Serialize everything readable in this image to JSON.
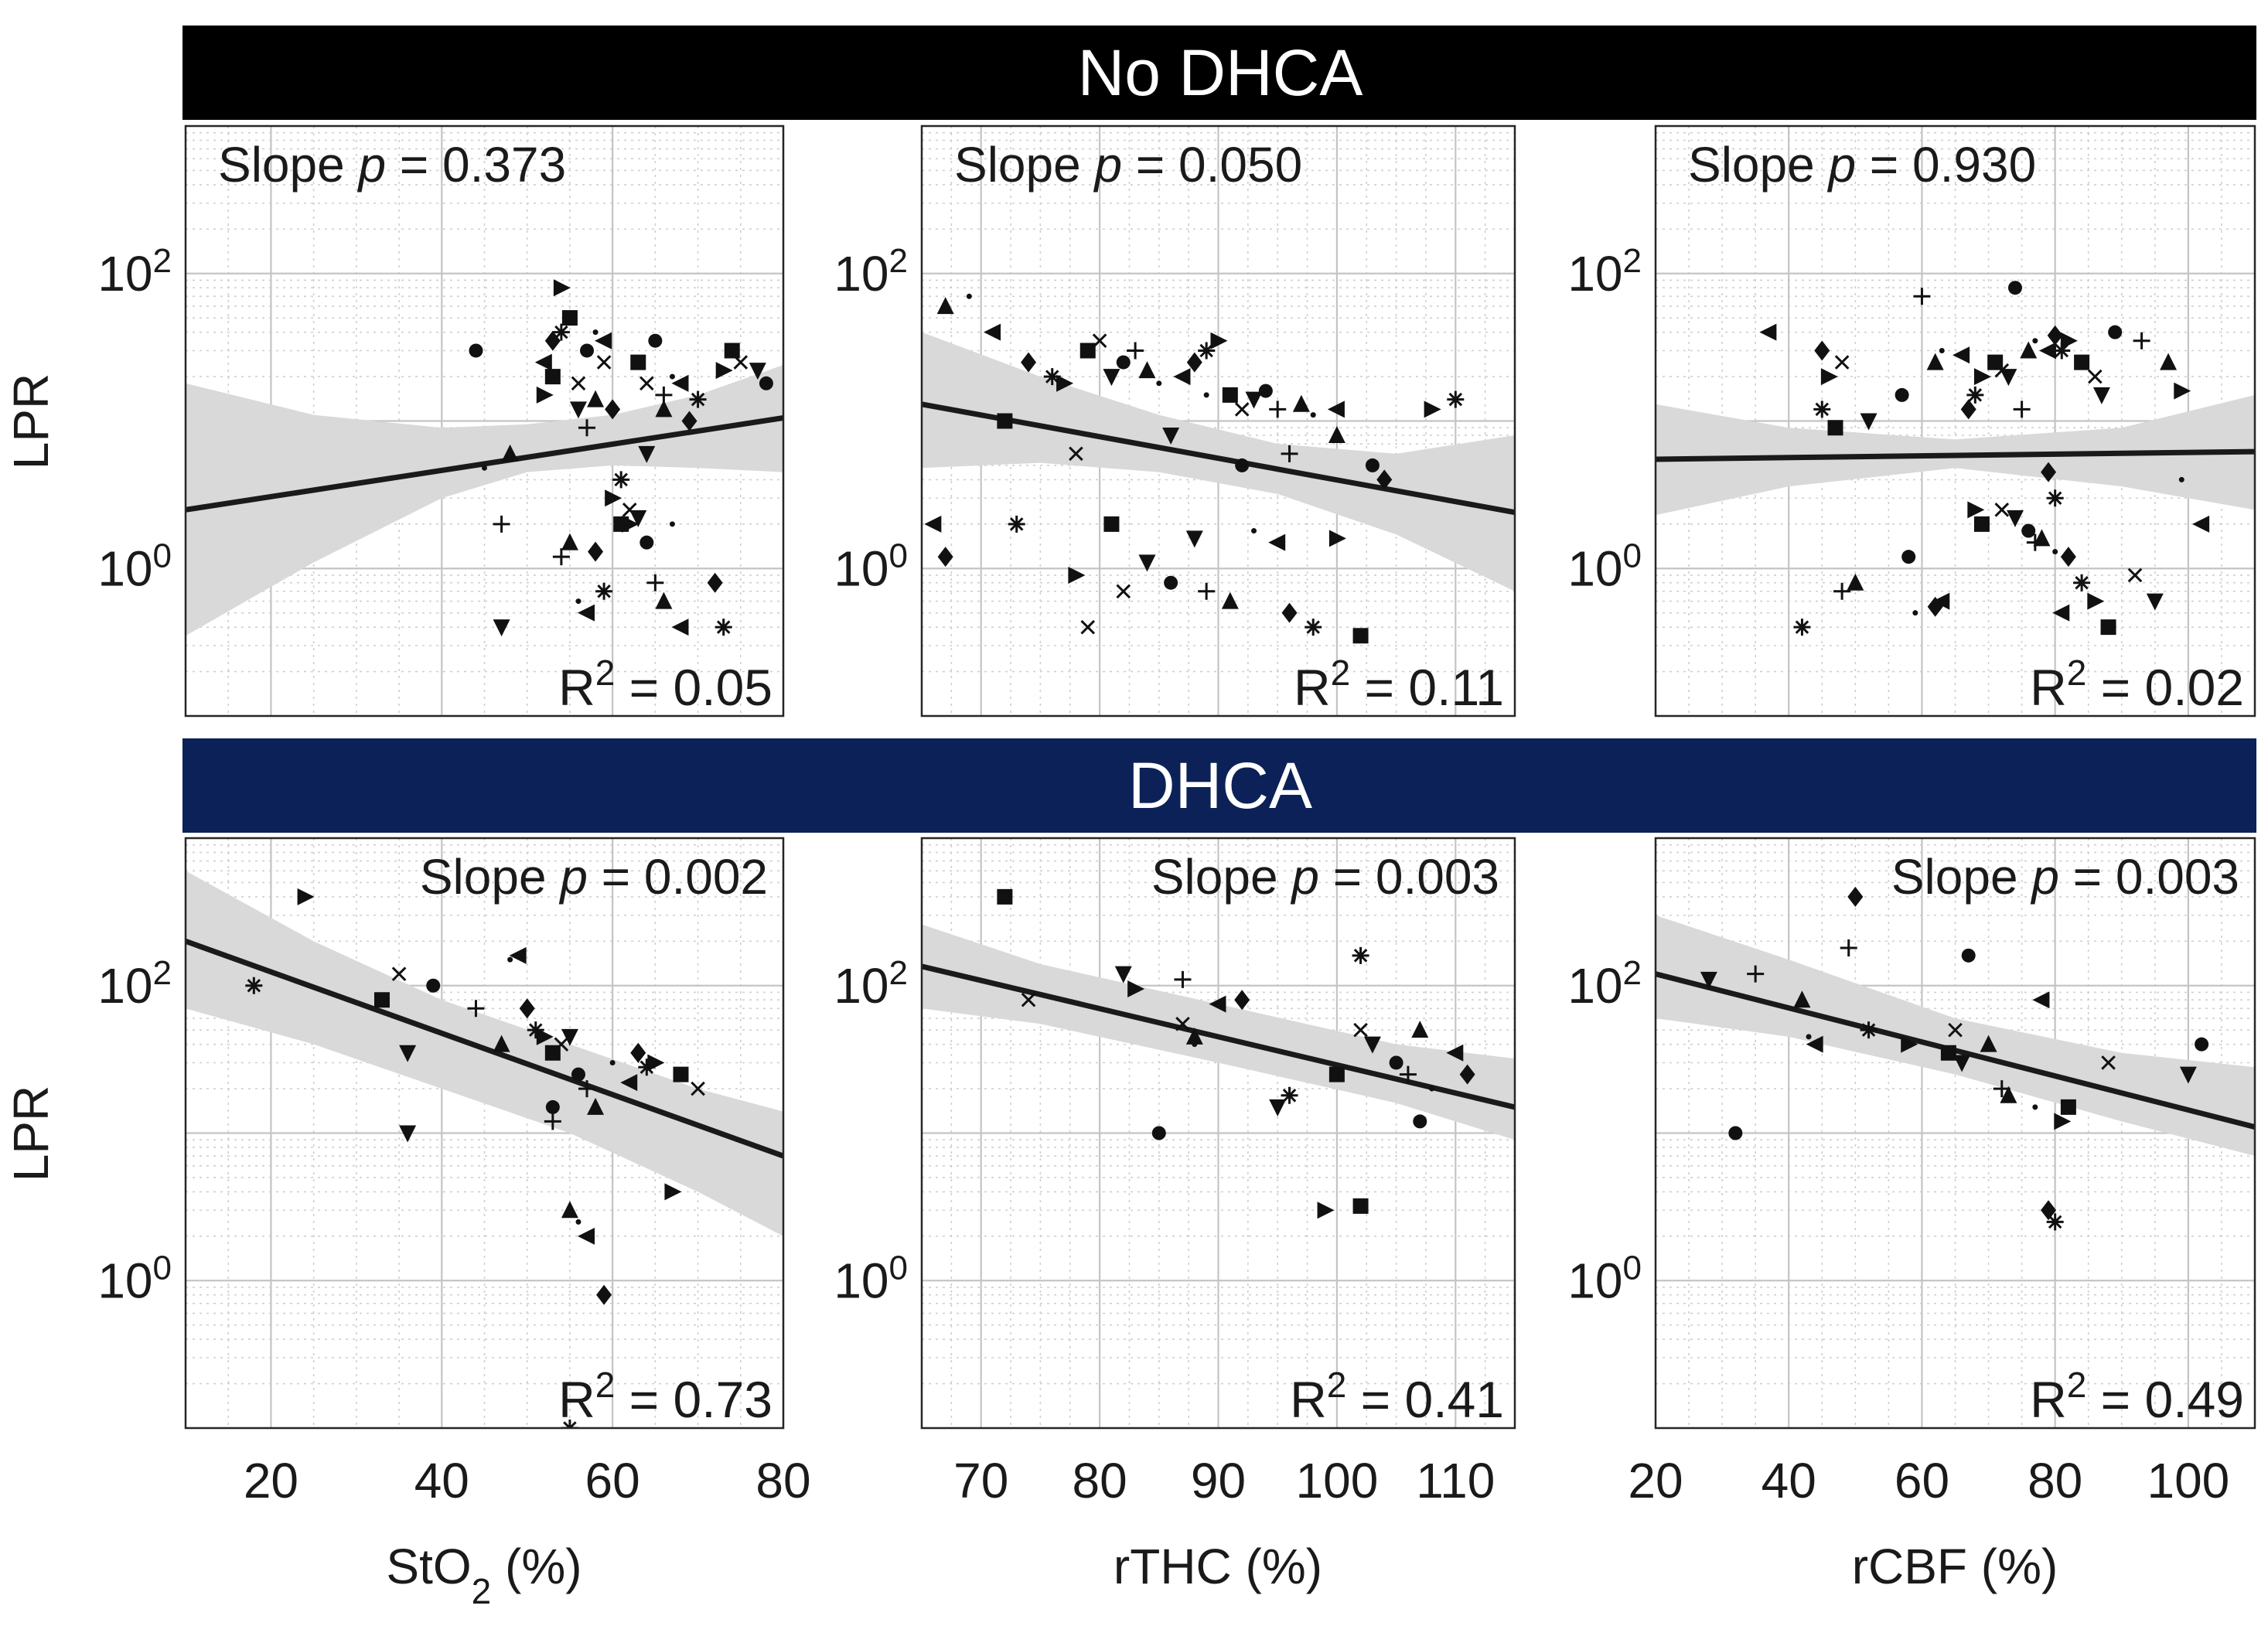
{
  "figure": {
    "ylabel": "LPR",
    "sections": [
      {
        "label": "No DHCA",
        "color": "#000000"
      },
      {
        "label": "DHCA",
        "color": "#0b2158"
      }
    ],
    "xaxes": [
      {
        "label_main": "StO",
        "label_sub": "2",
        "label_suffix": " (%)"
      },
      {
        "label_main": "rTHC (%)",
        "label_sub": "",
        "label_suffix": ""
      },
      {
        "label_main": "rCBF (%)",
        "label_sub": "",
        "label_suffix": ""
      }
    ],
    "colors": {
      "band": "#d9d9d9",
      "fit": "#1a1a1a",
      "markers": "#111111"
    }
  },
  "chart_data": [
    {
      "type": "scatter",
      "group": "No DHCA",
      "xlabel": "StO2 (%)",
      "ylabel": "LPR",
      "yscale": "log",
      "xlim": [
        10,
        80
      ],
      "ylim": [
        0.1,
        1000
      ],
      "xticks": [
        20,
        40,
        60,
        80
      ],
      "yticks": [
        1,
        100
      ],
      "ytick_labels": [
        "10^0",
        "10^2"
      ],
      "slope_text": "Slope p = 0.373",
      "slope_p": "0.373",
      "r2_text": "R2 = 0.05",
      "r2": "0.05",
      "fit": {
        "x": [
          10,
          80
        ],
        "y": [
          2.5,
          10.5
        ]
      },
      "band": {
        "x": [
          10,
          25,
          40,
          50,
          60,
          70,
          80
        ],
        "lower": [
          0.35,
          1.1,
          3.0,
          4.5,
          5.0,
          4.8,
          4.5
        ],
        "upper": [
          18,
          11,
          9,
          9.5,
          11,
          15,
          24
        ]
      },
      "points": [
        [
          44,
          30
        ],
        [
          47,
          2
        ],
        [
          48,
          6
        ],
        [
          45,
          4.8
        ],
        [
          52,
          25
        ],
        [
          53,
          35
        ],
        [
          54,
          40
        ],
        [
          54,
          80
        ],
        [
          55,
          50
        ],
        [
          56,
          18
        ],
        [
          56,
          12
        ],
        [
          57,
          30
        ],
        [
          57,
          9
        ],
        [
          58,
          14
        ],
        [
          58,
          40
        ],
        [
          59,
          35
        ],
        [
          60,
          12
        ],
        [
          61,
          4
        ],
        [
          62,
          2
        ],
        [
          63,
          25
        ],
        [
          64,
          18
        ],
        [
          64,
          6
        ],
        [
          65,
          35
        ],
        [
          66,
          15
        ],
        [
          66,
          12
        ],
        [
          67,
          20
        ],
        [
          68,
          18
        ],
        [
          69,
          10
        ],
        [
          70,
          14
        ],
        [
          73,
          22
        ],
        [
          74,
          30
        ],
        [
          75,
          25
        ],
        [
          77,
          22
        ],
        [
          78,
          18
        ],
        [
          54,
          1.2
        ],
        [
          55,
          1.5
        ],
        [
          56,
          0.6
        ],
        [
          57,
          0.5
        ],
        [
          58,
          1.3
        ],
        [
          59,
          0.7
        ],
        [
          60,
          3
        ],
        [
          61,
          2
        ],
        [
          62,
          2.5
        ],
        [
          63,
          2.2
        ],
        [
          64,
          1.5
        ],
        [
          65,
          0.8
        ],
        [
          66,
          0.6
        ],
        [
          67,
          2
        ],
        [
          68,
          0.4
        ],
        [
          72,
          0.8
        ],
        [
          73,
          0.4
        ],
        [
          52,
          15
        ],
        [
          53,
          20
        ],
        [
          59,
          25
        ],
        [
          47,
          0.4
        ]
      ]
    },
    {
      "type": "scatter",
      "group": "No DHCA",
      "xlabel": "rTHC (%)",
      "ylabel": "LPR",
      "yscale": "log",
      "xlim": [
        65,
        115
      ],
      "ylim": [
        0.1,
        1000
      ],
      "xticks": [
        70,
        80,
        90,
        100,
        110
      ],
      "yticks": [
        1,
        100
      ],
      "ytick_labels": [
        "10^0",
        "10^2"
      ],
      "slope_text": "Slope p = 0.050",
      "slope_p": "0.050",
      "r2_text": "R2 = 0.11",
      "r2": "0.11",
      "fit": {
        "x": [
          65,
          115
        ],
        "y": [
          13,
          2.4
        ]
      },
      "band": {
        "x": [
          65,
          75,
          85,
          95,
          105,
          115
        ],
        "lower": [
          4.8,
          5.2,
          4.5,
          3.2,
          1.7,
          0.7
        ],
        "upper": [
          40,
          20,
          11,
          7,
          6,
          8
        ]
      },
      "points": [
        [
          67,
          60
        ],
        [
          69,
          70
        ],
        [
          71,
          40
        ],
        [
          74,
          25
        ],
        [
          76,
          20
        ],
        [
          77,
          18
        ],
        [
          79,
          30
        ],
        [
          80,
          35
        ],
        [
          81,
          20
        ],
        [
          82,
          25
        ],
        [
          83,
          30
        ],
        [
          84,
          22
        ],
        [
          85,
          18
        ],
        [
          87,
          20
        ],
        [
          88,
          25
        ],
        [
          89,
          30
        ],
        [
          90,
          35
        ],
        [
          91,
          15
        ],
        [
          92,
          12
        ],
        [
          93,
          14
        ],
        [
          94,
          16
        ],
        [
          95,
          12
        ],
        [
          97,
          13
        ],
        [
          98,
          11
        ],
        [
          100,
          12
        ],
        [
          104,
          4
        ],
        [
          110,
          14
        ],
        [
          108,
          12
        ],
        [
          72,
          10
        ],
        [
          78,
          6
        ],
        [
          86,
          8
        ],
        [
          92,
          5
        ],
        [
          96,
          6
        ],
        [
          100,
          8
        ],
        [
          89,
          15
        ],
        [
          66,
          2
        ],
        [
          67,
          1.2
        ],
        [
          73,
          2
        ],
        [
          78,
          0.9
        ],
        [
          81,
          2
        ],
        [
          82,
          0.7
        ],
        [
          84,
          1.1
        ],
        [
          86,
          0.8
        ],
        [
          89,
          0.7
        ],
        [
          91,
          0.6
        ],
        [
          93,
          1.8
        ],
        [
          95,
          1.5
        ],
        [
          96,
          0.5
        ],
        [
          98,
          0.4
        ],
        [
          100,
          1.6
        ],
        [
          102,
          0.35
        ],
        [
          79,
          0.4
        ],
        [
          88,
          1.6
        ],
        [
          103,
          5
        ]
      ]
    },
    {
      "type": "scatter",
      "group": "No DHCA",
      "xlabel": "rCBF (%)",
      "ylabel": "LPR",
      "yscale": "log",
      "xlim": [
        20,
        110
      ],
      "ylim": [
        0.1,
        1000
      ],
      "xticks": [
        20,
        40,
        60,
        80,
        100
      ],
      "yticks": [
        1,
        100
      ],
      "ytick_labels": [
        "10^0",
        "10^2"
      ],
      "slope_text": "Slope p = 0.930",
      "slope_p": "0.930",
      "r2_text": "R2 = 0.02",
      "r2": "0.02",
      "fit": {
        "x": [
          20,
          110
        ],
        "y": [
          5.5,
          6.2
        ]
      },
      "band": {
        "x": [
          20,
          40,
          65,
          90,
          110
        ],
        "lower": [
          2.3,
          3.6,
          4.8,
          3.6,
          2.5
        ],
        "upper": [
          13,
          9,
          7.5,
          9,
          15
        ]
      },
      "points": [
        [
          37,
          40
        ],
        [
          45,
          30
        ],
        [
          45,
          12
        ],
        [
          46,
          20
        ],
        [
          47,
          9
        ],
        [
          48,
          25
        ],
        [
          52,
          10
        ],
        [
          57,
          15
        ],
        [
          60,
          70
        ],
        [
          62,
          25
        ],
        [
          63,
          30
        ],
        [
          66,
          28
        ],
        [
          67,
          12
        ],
        [
          68,
          15
        ],
        [
          69,
          20
        ],
        [
          71,
          25
        ],
        [
          72,
          22
        ],
        [
          73,
          20
        ],
        [
          74,
          80
        ],
        [
          75,
          12
        ],
        [
          76,
          30
        ],
        [
          77,
          35
        ],
        [
          79,
          30
        ],
        [
          80,
          38
        ],
        [
          81,
          30
        ],
        [
          82,
          35
        ],
        [
          84,
          25
        ],
        [
          86,
          20
        ],
        [
          87,
          15
        ],
        [
          89,
          40
        ],
        [
          93,
          35
        ],
        [
          97,
          25
        ],
        [
          99,
          4
        ],
        [
          102,
          2
        ],
        [
          79,
          4.5
        ],
        [
          80,
          3
        ],
        [
          68,
          2.5
        ],
        [
          69,
          2
        ],
        [
          72,
          2.5
        ],
        [
          74,
          2.2
        ],
        [
          76,
          1.8
        ],
        [
          77,
          1.5
        ],
        [
          78,
          1.6
        ],
        [
          80,
          1.3
        ],
        [
          81,
          0.5
        ],
        [
          82,
          1.2
        ],
        [
          84,
          0.8
        ],
        [
          86,
          0.6
        ],
        [
          88,
          0.4
        ],
        [
          92,
          0.9
        ],
        [
          95,
          0.6
        ],
        [
          58,
          1.2
        ],
        [
          48,
          0.7
        ],
        [
          50,
          0.8
        ],
        [
          59,
          0.5
        ],
        [
          63,
          0.6
        ],
        [
          62,
          0.55
        ],
        [
          42,
          0.4
        ],
        [
          99,
          16
        ]
      ]
    },
    {
      "type": "scatter",
      "group": "DHCA",
      "xlabel": "StO2 (%)",
      "ylabel": "LPR",
      "yscale": "log",
      "xlim": [
        10,
        80
      ],
      "ylim": [
        0.1,
        1000
      ],
      "xticks": [
        20,
        40,
        60,
        80
      ],
      "yticks": [
        1,
        100
      ],
      "ytick_labels": [
        "10^0",
        "10^2"
      ],
      "slope_text": "Slope p = 0.002",
      "slope_p": "0.002",
      "r2_text": "R2 = 0.73",
      "r2": "0.73",
      "fit": {
        "x": [
          10,
          80
        ],
        "y": [
          200,
          7
        ]
      },
      "band": {
        "x": [
          10,
          25,
          40,
          55,
          70,
          80
        ],
        "lower": [
          70,
          40,
          20,
          10,
          4,
          2
        ],
        "upper": [
          600,
          200,
          80,
          40,
          20,
          14
        ]
      },
      "points": [
        [
          18,
          100
        ],
        [
          24,
          400
        ],
        [
          33,
          80
        ],
        [
          35,
          120
        ],
        [
          36,
          35
        ],
        [
          39,
          100
        ],
        [
          44,
          70
        ],
        [
          47,
          40
        ],
        [
          48,
          150
        ],
        [
          49,
          160
        ],
        [
          50,
          70
        ],
        [
          51,
          50
        ],
        [
          52,
          45
        ],
        [
          53,
          35
        ],
        [
          54,
          40
        ],
        [
          55,
          45
        ],
        [
          56,
          25
        ],
        [
          57,
          20
        ],
        [
          58,
          15
        ],
        [
          60,
          30
        ],
        [
          62,
          22
        ],
        [
          63,
          35
        ],
        [
          64,
          28
        ],
        [
          65,
          30
        ],
        [
          68,
          25
        ],
        [
          70,
          20
        ],
        [
          36,
          10
        ],
        [
          53,
          15
        ],
        [
          53,
          12
        ],
        [
          55,
          3
        ],
        [
          56,
          2.5
        ],
        [
          57,
          2
        ],
        [
          59,
          0.8
        ],
        [
          55,
          0.1
        ],
        [
          67,
          4
        ]
      ]
    },
    {
      "type": "scatter",
      "group": "DHCA",
      "xlabel": "rTHC (%)",
      "ylabel": "LPR",
      "yscale": "log",
      "xlim": [
        65,
        115
      ],
      "ylim": [
        0.1,
        1000
      ],
      "xticks": [
        70,
        80,
        90,
        100,
        110
      ],
      "yticks": [
        1,
        100
      ],
      "ytick_labels": [
        "10^0",
        "10^2"
      ],
      "slope_text": "Slope p = 0.003",
      "slope_p": "0.003",
      "r2_text": "R2 = 0.41",
      "r2": "0.41",
      "fit": {
        "x": [
          65,
          115
        ],
        "y": [
          135,
          15
        ]
      },
      "band": {
        "x": [
          65,
          75,
          90,
          105,
          115
        ],
        "lower": [
          70,
          55,
          30,
          16,
          9
        ],
        "upper": [
          260,
          140,
          75,
          40,
          32
        ]
      },
      "points": [
        [
          72,
          400
        ],
        [
          74,
          80
        ],
        [
          82,
          120
        ],
        [
          85,
          10
        ],
        [
          87,
          110
        ],
        [
          88,
          45
        ],
        [
          88,
          40
        ],
        [
          90,
          75
        ],
        [
          92,
          80
        ],
        [
          96,
          18
        ],
        [
          99,
          3
        ],
        [
          100,
          25
        ],
        [
          102,
          50
        ],
        [
          103,
          40
        ],
        [
          105,
          30
        ],
        [
          106,
          25
        ],
        [
          107,
          50
        ],
        [
          108,
          20
        ],
        [
          110,
          35
        ],
        [
          111,
          25
        ],
        [
          102,
          160
        ],
        [
          83,
          95
        ],
        [
          102,
          3.2
        ],
        [
          87,
          55
        ],
        [
          95,
          15
        ],
        [
          107,
          12
        ]
      ]
    },
    {
      "type": "scatter",
      "group": "DHCA",
      "xlabel": "rCBF (%)",
      "ylabel": "LPR",
      "yscale": "log",
      "xlim": [
        20,
        110
      ],
      "ylim": [
        0.1,
        1000
      ],
      "xticks": [
        20,
        40,
        60,
        80,
        100
      ],
      "yticks": [
        1,
        100
      ],
      "ytick_labels": [
        "10^0",
        "10^2"
      ],
      "slope_text": "Slope p = 0.003",
      "slope_p": "0.003",
      "r2_text": "R2 = 0.49",
      "r2": "0.49",
      "fit": {
        "x": [
          20,
          110
        ],
        "y": [
          120,
          11
        ]
      },
      "band": {
        "x": [
          20,
          40,
          65,
          90,
          110
        ],
        "lower": [
          60,
          45,
          25,
          12,
          7
        ],
        "upper": [
          300,
          150,
          60,
          35,
          28
        ]
      },
      "points": [
        [
          28,
          110
        ],
        [
          32,
          10
        ],
        [
          35,
          120
        ],
        [
          42,
          80
        ],
        [
          43,
          45
        ],
        [
          44,
          40
        ],
        [
          50,
          400
        ],
        [
          52,
          50
        ],
        [
          58,
          40
        ],
        [
          64,
          35
        ],
        [
          65,
          50
        ],
        [
          66,
          30
        ],
        [
          67,
          160
        ],
        [
          72,
          20
        ],
        [
          73,
          18
        ],
        [
          77,
          15
        ],
        [
          78,
          80
        ],
        [
          79,
          3
        ],
        [
          80,
          2.5
        ],
        [
          81,
          12
        ],
        [
          82,
          15
        ],
        [
          88,
          30
        ],
        [
          100,
          25
        ],
        [
          102,
          40
        ],
        [
          49,
          180
        ],
        [
          70,
          40
        ]
      ]
    }
  ]
}
